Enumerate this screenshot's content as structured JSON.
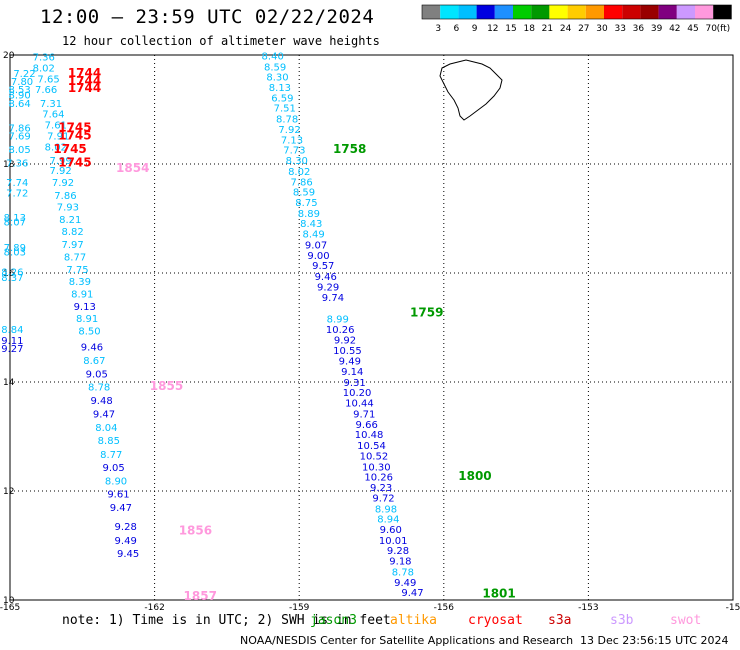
{
  "header": {
    "title": "12:00 – 23:59 UTC 02/22/2024",
    "subtitle": "12 hour collection of altimeter wave heights"
  },
  "colorbar": {
    "labels": [
      "3",
      "6",
      "9",
      "12",
      "15",
      "18",
      "21",
      "24",
      "27",
      "30",
      "33",
      "36",
      "39",
      "42",
      "45",
      "70",
      "(ft)"
    ],
    "colors": [
      "#808080",
      "#00e5ff",
      "#00bfff",
      "#0000e0",
      "#1e90ff",
      "#00cd00",
      "#009900",
      "#ffff00",
      "#ffcc00",
      "#ff9900",
      "#ff0000",
      "#cc0000",
      "#990000",
      "#800080",
      "#cc99ff",
      "#ff99dd",
      "#000000"
    ]
  },
  "footer": {
    "note": "note:  1) Time is in UTC;  2) SWH is in feet",
    "satellites": [
      {
        "name": "jason3",
        "color": "#009900"
      },
      {
        "name": "altika",
        "color": "#ff9900"
      },
      {
        "name": "cryosat",
        "color": "#ff0000"
      },
      {
        "name": "s3a",
        "color": "#cc0000"
      },
      {
        "name": "s3b",
        "color": "#cc99ff"
      },
      {
        "name": "swot",
        "color": "#ff99dd"
      }
    ],
    "credit": "NOAA/NESDIS Center for Satellite Applications and Research",
    "created": "13 Dec 23:56:15 UTC 2024"
  },
  "chart_data": {
    "type": "scatter",
    "title": "12:00 – 23:59 UTC 02/22/2024",
    "subtitle": "12 hour collection of altimeter wave heights",
    "xlim": [
      -165,
      -150
    ],
    "ylim": [
      10,
      20
    ],
    "xticks": [
      "-165",
      "-162",
      "-159",
      "-156",
      "-153",
      "-15"
    ],
    "yticks": [
      "20",
      "18",
      "16",
      "14",
      "12",
      "10"
    ],
    "grid": true,
    "unit": "ft",
    "tracks": [
      {
        "satellite": "jason3",
        "color": "#009900",
        "time_labels": [
          {
            "text": "1758",
            "lon": -158.3,
            "lat": 18.2
          },
          {
            "text": "1759",
            "lon": -156.7,
            "lat": 15.2
          },
          {
            "text": "1800",
            "lon": -155.7,
            "lat": 12.2
          },
          {
            "text": "1801",
            "lon": -155.2,
            "lat": 10.05
          }
        ],
        "points": [
          {
            "lon": -159.55,
            "lat": 19.92,
            "v": "8.40"
          },
          {
            "lon": -159.5,
            "lat": 19.72,
            "v": "8.59"
          },
          {
            "lon": -159.45,
            "lat": 19.53,
            "v": "8.30"
          },
          {
            "lon": -159.4,
            "lat": 19.34,
            "v": "8.13"
          },
          {
            "lon": -159.35,
            "lat": 19.15,
            "v": "6.59"
          },
          {
            "lon": -159.3,
            "lat": 18.96,
            "v": "7.51"
          },
          {
            "lon": -159.25,
            "lat": 18.76,
            "v": "8.78"
          },
          {
            "lon": -159.2,
            "lat": 18.57,
            "v": "7.92"
          },
          {
            "lon": -159.15,
            "lat": 18.38,
            "v": "7.13"
          },
          {
            "lon": -159.1,
            "lat": 18.19,
            "v": "7.73"
          },
          {
            "lon": -159.05,
            "lat": 18.0,
            "v": "8.30"
          },
          {
            "lon": -159.0,
            "lat": 17.8,
            "v": "8.02"
          },
          {
            "lon": -158.95,
            "lat": 17.61,
            "v": "7.86"
          },
          {
            "lon": -158.9,
            "lat": 17.42,
            "v": "8.59"
          },
          {
            "lon": -158.85,
            "lat": 17.23,
            "v": "8.75"
          },
          {
            "lon": -158.8,
            "lat": 17.03,
            "v": "8.89"
          },
          {
            "lon": -158.75,
            "lat": 16.84,
            "v": "8.43"
          },
          {
            "lon": -158.7,
            "lat": 16.65,
            "v": "8.49"
          },
          {
            "lon": -158.65,
            "lat": 16.45,
            "v": "9.07"
          },
          {
            "lon": -158.6,
            "lat": 16.26,
            "v": "9.00"
          },
          {
            "lon": -158.5,
            "lat": 16.07,
            "v": "9.57"
          },
          {
            "lon": -158.45,
            "lat": 15.87,
            "v": "9.46"
          },
          {
            "lon": -158.4,
            "lat": 15.68,
            "v": "9.29"
          },
          {
            "lon": -158.3,
            "lat": 15.49,
            "v": "9.74"
          },
          {
            "lon": -158.2,
            "lat": 15.09,
            "v": "8.99"
          },
          {
            "lon": -158.15,
            "lat": 14.9,
            "v": "10.26"
          },
          {
            "lon": -158.05,
            "lat": 14.71,
            "v": "9.92"
          },
          {
            "lon": -158.0,
            "lat": 14.51,
            "v": "10.55"
          },
          {
            "lon": -157.95,
            "lat": 14.32,
            "v": "9.49"
          },
          {
            "lon": -157.9,
            "lat": 14.13,
            "v": "9.14"
          },
          {
            "lon": -157.85,
            "lat": 13.93,
            "v": "9.31"
          },
          {
            "lon": -157.8,
            "lat": 13.74,
            "v": "10.20"
          },
          {
            "lon": -157.75,
            "lat": 13.55,
            "v": "10.44"
          },
          {
            "lon": -157.65,
            "lat": 13.35,
            "v": "9.71"
          },
          {
            "lon": -157.6,
            "lat": 13.16,
            "v": "9.66"
          },
          {
            "lon": -157.55,
            "lat": 12.97,
            "v": "10.48"
          },
          {
            "lon": -157.5,
            "lat": 12.77,
            "v": "10.54"
          },
          {
            "lon": -157.45,
            "lat": 12.58,
            "v": "10.52"
          },
          {
            "lon": -157.4,
            "lat": 12.38,
            "v": "10.30"
          },
          {
            "lon": -157.35,
            "lat": 12.19,
            "v": "10.26"
          },
          {
            "lon": -157.3,
            "lat": 12.0,
            "v": "9.23"
          },
          {
            "lon": -157.25,
            "lat": 11.81,
            "v": "9.72"
          },
          {
            "lon": -157.2,
            "lat": 11.61,
            "v": "8.98"
          },
          {
            "lon": -157.15,
            "lat": 11.42,
            "v": "8.94"
          },
          {
            "lon": -157.1,
            "lat": 11.23,
            "v": "9.60"
          },
          {
            "lon": -157.05,
            "lat": 11.03,
            "v": "10.01"
          },
          {
            "lon": -156.95,
            "lat": 10.84,
            "v": "9.28"
          },
          {
            "lon": -156.9,
            "lat": 10.65,
            "v": "9.18"
          },
          {
            "lon": -156.85,
            "lat": 10.45,
            "v": "8.78"
          },
          {
            "lon": -156.8,
            "lat": 10.26,
            "v": "9.49"
          },
          {
            "lon": -156.65,
            "lat": 10.07,
            "v": "9.47"
          }
        ]
      },
      {
        "satellite": "swot",
        "color": "#ff99dd",
        "time_labels": [
          {
            "text": "1854",
            "lon": -162.8,
            "lat": 17.85
          },
          {
            "text": "1855",
            "lon": -162.1,
            "lat": 13.85
          },
          {
            "text": "1856",
            "lon": -161.5,
            "lat": 11.2
          },
          {
            "text": "1857",
            "lon": -161.4,
            "lat": 10.0
          }
        ],
        "points": [
          {
            "lon": -164.3,
            "lat": 19.9,
            "v": "7.36"
          },
          {
            "lon": -164.3,
            "lat": 19.7,
            "v": "8.02"
          },
          {
            "lon": -164.2,
            "lat": 19.5,
            "v": "7.65"
          },
          {
            "lon": -164.25,
            "lat": 19.3,
            "v": "7.66"
          },
          {
            "lon": -164.15,
            "lat": 19.05,
            "v": "7.31"
          },
          {
            "lon": -164.1,
            "lat": 18.85,
            "v": "7.64"
          },
          {
            "lon": -164.05,
            "lat": 18.65,
            "v": "7.61"
          },
          {
            "lon": -164.0,
            "lat": 18.45,
            "v": "7.91"
          },
          {
            "lon": -164.05,
            "lat": 18.25,
            "v": "8.02"
          },
          {
            "lon": -163.95,
            "lat": 18.0,
            "v": "7.99"
          },
          {
            "lon": -163.95,
            "lat": 17.82,
            "v": "7.92"
          },
          {
            "lon": -163.9,
            "lat": 17.6,
            "v": "7.92"
          },
          {
            "lon": -163.85,
            "lat": 17.36,
            "v": "7.86"
          },
          {
            "lon": -163.8,
            "lat": 17.15,
            "v": "7.93"
          },
          {
            "lon": -163.75,
            "lat": 16.92,
            "v": "8.21"
          },
          {
            "lon": -163.7,
            "lat": 16.7,
            "v": "8.82"
          },
          {
            "lon": -163.7,
            "lat": 16.46,
            "v": "7.97"
          },
          {
            "lon": -163.65,
            "lat": 16.23,
            "v": "8.77"
          },
          {
            "lon": -163.6,
            "lat": 16.0,
            "v": "7.75"
          },
          {
            "lon": -163.55,
            "lat": 15.78,
            "v": "8.39"
          },
          {
            "lon": -163.5,
            "lat": 15.55,
            "v": "8.91"
          },
          {
            "lon": -163.45,
            "lat": 15.32,
            "v": "9.13"
          },
          {
            "lon": -163.4,
            "lat": 15.1,
            "v": "8.91"
          },
          {
            "lon": -163.35,
            "lat": 14.87,
            "v": "8.50"
          },
          {
            "lon": -163.3,
            "lat": 14.58,
            "v": "9.46"
          },
          {
            "lon": -163.25,
            "lat": 14.33,
            "v": "8.67"
          },
          {
            "lon": -163.2,
            "lat": 14.08,
            "v": "9.05"
          },
          {
            "lon": -163.15,
            "lat": 13.84,
            "v": "8.78"
          },
          {
            "lon": -163.1,
            "lat": 13.6,
            "v": "9.48"
          },
          {
            "lon": -163.05,
            "lat": 13.35,
            "v": "9.47"
          },
          {
            "lon": -163.0,
            "lat": 13.1,
            "v": "8.04"
          },
          {
            "lon": -162.95,
            "lat": 12.86,
            "v": "8.85"
          },
          {
            "lon": -162.9,
            "lat": 12.61,
            "v": "8.77"
          },
          {
            "lon": -162.85,
            "lat": 12.37,
            "v": "9.05"
          },
          {
            "lon": -162.8,
            "lat": 12.12,
            "v": "8.90"
          },
          {
            "lon": -162.75,
            "lat": 11.88,
            "v": "9.61"
          },
          {
            "lon": -162.7,
            "lat": 11.63,
            "v": "9.47"
          },
          {
            "lon": -162.6,
            "lat": 11.28,
            "v": "9.28"
          },
          {
            "lon": -162.6,
            "lat": 11.03,
            "v": "9.49"
          },
          {
            "lon": -162.55,
            "lat": 10.79,
            "v": "9.45"
          }
        ]
      },
      {
        "satellite": "cryosat",
        "color": "#ff0000",
        "time_labels": [
          {
            "text": "1744",
            "lon": -163.8,
            "lat": 19.6
          },
          {
            "text": "1744",
            "lon": -163.8,
            "lat": 19.45
          },
          {
            "text": "1744",
            "lon": -163.8,
            "lat": 19.32
          },
          {
            "text": "1745",
            "lon": -164.0,
            "lat": 18.6
          },
          {
            "text": "1745",
            "lon": -164.0,
            "lat": 18.45
          },
          {
            "text": "1745",
            "lon": -164.1,
            "lat": 18.2
          },
          {
            "text": "1745",
            "lon": -164.0,
            "lat": 17.95
          }
        ],
        "points": [
          {
            "lon": -164.7,
            "lat": 19.6,
            "v": "7.22"
          },
          {
            "lon": -164.75,
            "lat": 19.45,
            "v": "7.80"
          },
          {
            "lon": -164.8,
            "lat": 19.3,
            "v": "8.53"
          },
          {
            "lon": -164.8,
            "lat": 19.2,
            "v": "8.90"
          },
          {
            "lon": -164.8,
            "lat": 19.05,
            "v": "8.64"
          },
          {
            "lon": -164.8,
            "lat": 18.6,
            "v": "7.86"
          },
          {
            "lon": -164.8,
            "lat": 18.45,
            "v": "7.69"
          },
          {
            "lon": -164.8,
            "lat": 18.2,
            "v": "8.05"
          },
          {
            "lon": -164.85,
            "lat": 17.95,
            "v": "7.36"
          },
          {
            "lon": -164.85,
            "lat": 17.6,
            "v": "7.74"
          },
          {
            "lon": -164.85,
            "lat": 17.4,
            "v": "7.72"
          },
          {
            "lon": -164.9,
            "lat": 16.95,
            "v": "8.13"
          },
          {
            "lon": -164.9,
            "lat": 16.87,
            "v": "8.07"
          },
          {
            "lon": -164.9,
            "lat": 16.4,
            "v": "7.89"
          },
          {
            "lon": -164.9,
            "lat": 16.32,
            "v": "8.03"
          },
          {
            "lon": -164.95,
            "lat": 15.95,
            "v": "8.26"
          },
          {
            "lon": -164.95,
            "lat": 15.85,
            "v": "8.37"
          },
          {
            "lon": -164.95,
            "lat": 14.9,
            "v": "8.84"
          },
          {
            "lon": -164.95,
            "lat": 14.7,
            "v": "9.11"
          },
          {
            "lon": -164.95,
            "lat": 14.55,
            "v": "9.27"
          }
        ]
      }
    ]
  }
}
